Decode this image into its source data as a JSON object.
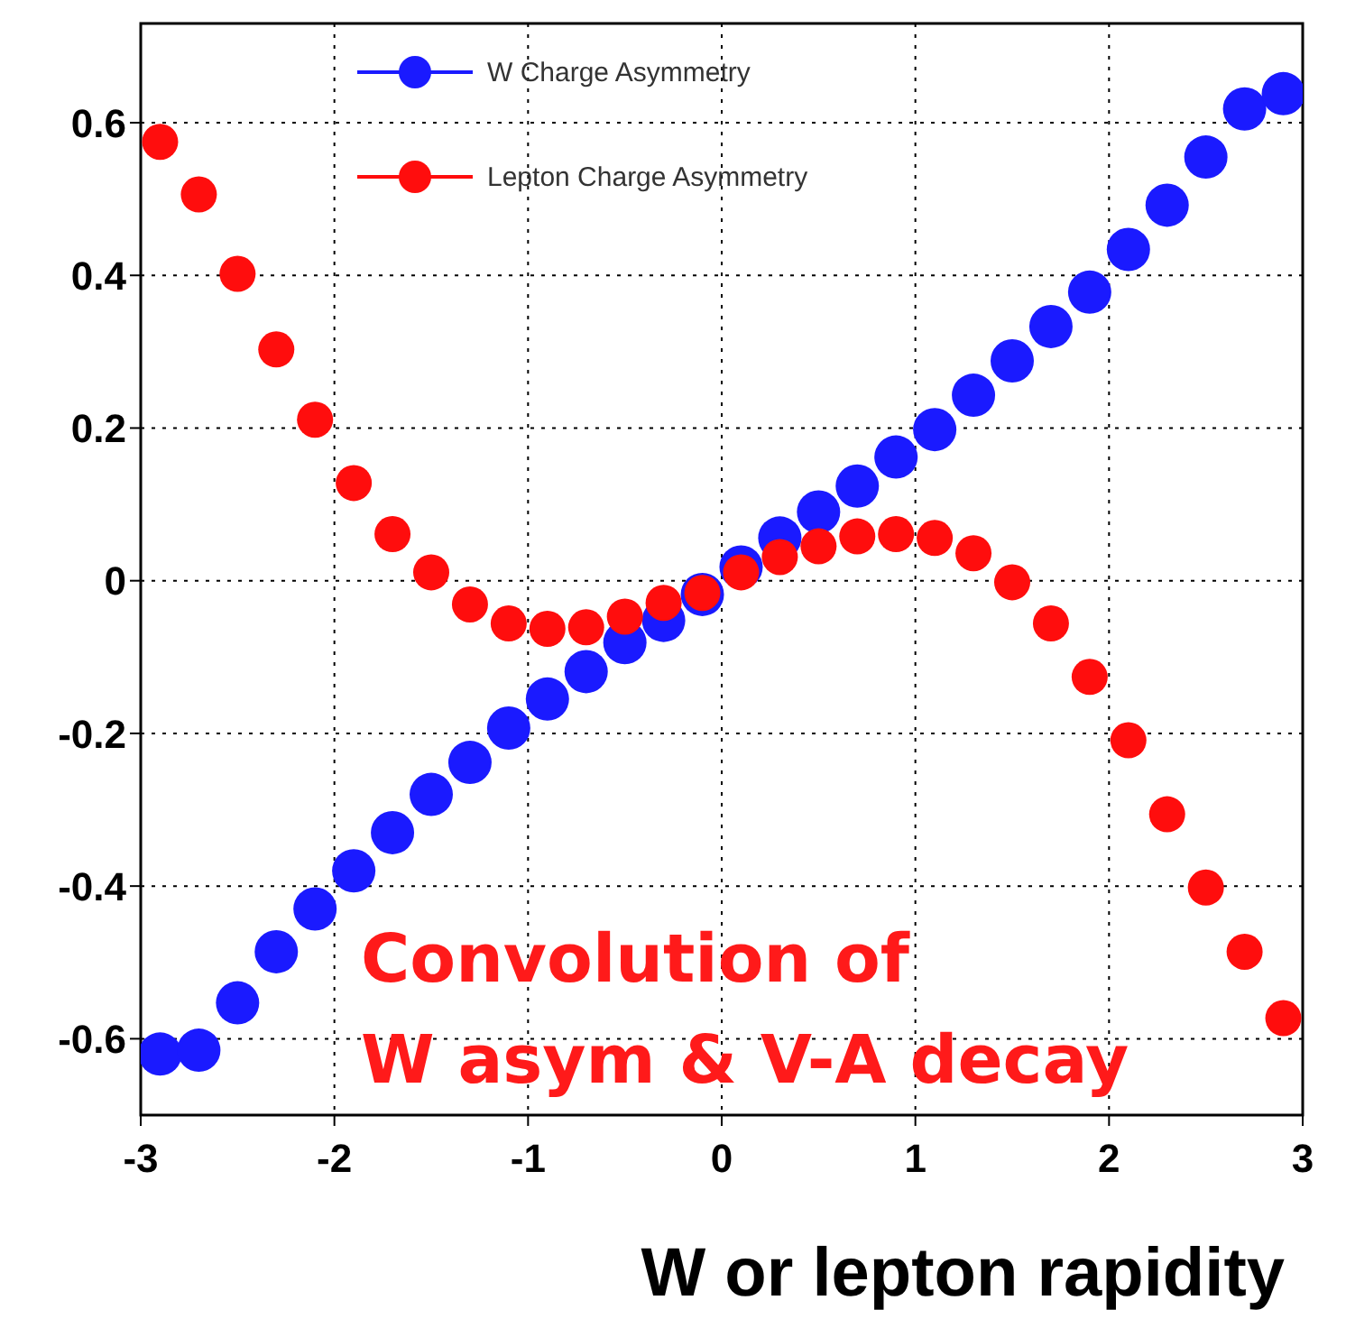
{
  "chart_data": {
    "type": "scatter",
    "xlabel": "W or lepton rapidity",
    "xlim": [
      -3,
      3
    ],
    "xticks": [
      -3,
      -2,
      -1,
      0,
      1,
      2,
      3
    ],
    "ylim": [
      -0.7,
      0.73
    ],
    "yticks": [
      -0.6,
      -0.4,
      -0.2,
      0,
      0.2,
      0.4,
      0.6
    ],
    "grid": true,
    "legend": "top",
    "marker": "circle",
    "x": [
      -2.9,
      -2.7,
      -2.5,
      -2.3,
      -2.1,
      -1.9,
      -1.7,
      -1.5,
      -1.3,
      -1.1,
      -0.9,
      -0.7,
      -0.5,
      -0.3,
      -0.1,
      0.1,
      0.3,
      0.5,
      0.7,
      0.9,
      1.1,
      1.3,
      1.5,
      1.7,
      1.9,
      2.1,
      2.3,
      2.5,
      2.7,
      2.9
    ],
    "series": [
      {
        "name": "W Charge Asymmetry",
        "color": "#1a1aff",
        "values": [
          -0.62,
          -0.615,
          -0.553,
          -0.486,
          -0.43,
          -0.38,
          -0.33,
          -0.28,
          -0.238,
          -0.193,
          -0.155,
          -0.119,
          -0.081,
          -0.052,
          -0.018,
          0.018,
          0.056,
          0.09,
          0.124,
          0.162,
          0.198,
          0.243,
          0.288,
          0.333,
          0.378,
          0.434,
          0.492,
          0.555,
          0.618,
          0.638
        ]
      },
      {
        "name": "Lepton Charge Asymmetry",
        "color": "#ff0d0d",
        "values": [
          0.575,
          0.506,
          0.402,
          0.303,
          0.211,
          0.128,
          0.061,
          0.011,
          -0.031,
          -0.056,
          -0.063,
          -0.061,
          -0.047,
          -0.029,
          -0.016,
          0.011,
          0.031,
          0.045,
          0.058,
          0.061,
          0.056,
          0.036,
          -0.002,
          -0.056,
          -0.126,
          -0.209,
          -0.306,
          -0.402,
          -0.486,
          -0.573
        ]
      }
    ],
    "annotations": [
      "Convolution of\nW asym & V-A decay"
    ]
  }
}
